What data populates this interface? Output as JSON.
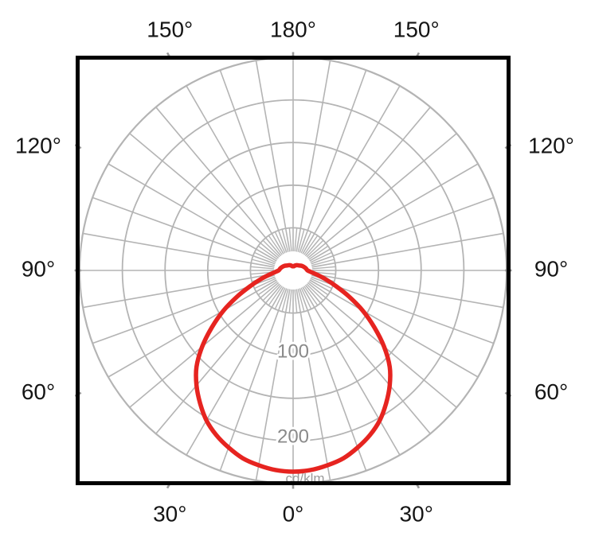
{
  "figure": {
    "description": "Polar luminous intensity distribution curve (photometric diagram)",
    "colors": {
      "background": "#ffffff",
      "curve": "#e62420",
      "grid": "#b4b4b4",
      "frame": "#000000",
      "angle_label": "#151515",
      "ring_label": "#8a8a8a",
      "tick": "#999999",
      "units_label": "#9a9a9a"
    }
  },
  "chart_data": {
    "type": "line",
    "subtype": "polar-photometric-distribution",
    "title": "",
    "units_label": "cd/klm",
    "angle_axis": {
      "unit": "degrees",
      "zero_direction": "down",
      "labels": [
        {
          "text": "150°",
          "gamma": 150,
          "sign": -1,
          "edge": "top"
        },
        {
          "text": "180°",
          "gamma": 180,
          "sign": 0,
          "edge": "top"
        },
        {
          "text": "150°",
          "gamma": 150,
          "sign": 1,
          "edge": "top"
        },
        {
          "text": "120°",
          "gamma": 120,
          "sign": -1,
          "edge": "left"
        },
        {
          "text": "90°",
          "gamma": 90,
          "sign": -1,
          "edge": "left"
        },
        {
          "text": "60°",
          "gamma": 60,
          "sign": -1,
          "edge": "left"
        },
        {
          "text": "120°",
          "gamma": 120,
          "sign": 1,
          "edge": "right"
        },
        {
          "text": "90°",
          "gamma": 90,
          "sign": 1,
          "edge": "right"
        },
        {
          "text": "60°",
          "gamma": 60,
          "sign": 1,
          "edge": "right"
        },
        {
          "text": "30°",
          "gamma": 30,
          "sign": -1,
          "edge": "bottom"
        },
        {
          "text": "0°",
          "gamma": 0,
          "sign": 0,
          "edge": "bottom"
        },
        {
          "text": "30°",
          "gamma": 30,
          "sign": 1,
          "edge": "bottom"
        }
      ]
    },
    "radial_axis": {
      "rings": [
        50,
        100,
        150,
        200,
        250
      ],
      "max": 250,
      "labeled_rings": [
        {
          "value": 100,
          "label": "100"
        },
        {
          "value": 200,
          "label": "200"
        }
      ]
    },
    "grid": {
      "spoke_step_deg": 10,
      "inner_fine_spoke_step_deg": 5,
      "fine_spokes_extent_ring": 50,
      "grid_on": true
    },
    "series": [
      {
        "name": "luminous-intensity-distribution",
        "color": "#e62420",
        "symmetric": true,
        "gamma_deg": [
          0,
          5,
          10,
          15,
          20,
          25,
          30,
          35,
          40,
          45,
          50,
          55,
          60,
          65,
          70,
          75,
          80,
          85,
          90,
          100,
          110,
          120,
          130,
          140,
          150,
          160,
          170,
          180
        ],
        "intensity_cd_per_klm": [
          236,
          235,
          232,
          228,
          221,
          213,
          203,
          190,
          176,
          160,
          139,
          116,
          94,
          72,
          53,
          39,
          28,
          21,
          17,
          15,
          13,
          11,
          9,
          8,
          7,
          6,
          5,
          5
        ]
      }
    ]
  }
}
